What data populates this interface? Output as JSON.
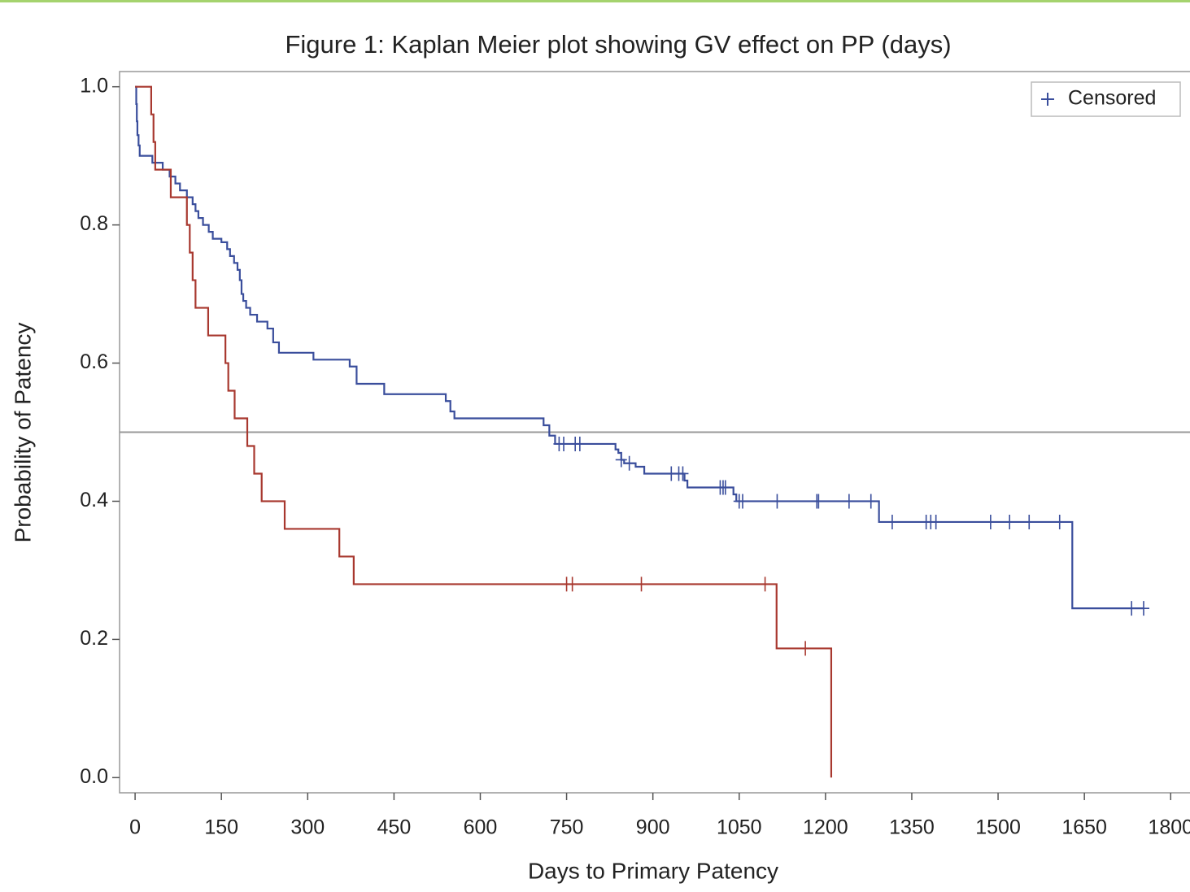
{
  "chart_data": {
    "type": "step",
    "title": "Figure 1: Kaplan Meier plot showing GV effect on PP (days)",
    "x_label": "Days to Primary Patency",
    "y_label": "Probability of Patency",
    "xlim": [
      -27,
      1835
    ],
    "ylim": [
      -0.022,
      1.022
    ],
    "xticks": [
      0,
      150,
      300,
      450,
      600,
      750,
      900,
      1050,
      1200,
      1350,
      1500,
      1650,
      1800
    ],
    "yticks": [
      {
        "value": 0,
        "label": "0.0"
      },
      0.2,
      0.4,
      0.6,
      0.8,
      {
        "value": 1,
        "label": "1.0"
      }
    ],
    "reference_line": 0.5,
    "legend_position": "upper right",
    "censored_label": "Censored",
    "censored_color": "#3a4e9c",
    "series": [
      {
        "color": "#3a4e9c",
        "x": [
          0,
          2,
          3,
          4,
          6,
          8,
          30,
          48,
          60,
          70,
          78,
          90,
          100,
          105,
          110,
          118,
          128,
          135,
          150,
          160,
          165,
          172,
          178,
          182,
          185,
          188,
          193,
          200,
          212,
          230,
          240,
          250,
          310,
          373,
          385,
          433,
          540,
          548,
          555,
          710,
          720,
          730,
          835,
          840,
          845,
          850,
          870,
          885,
          955,
          960,
          1040,
          1045,
          1293,
          1629,
          1753
        ],
        "values": [
          1.0,
          0.975,
          0.95,
          0.93,
          0.915,
          0.9,
          0.89,
          0.88,
          0.87,
          0.86,
          0.85,
          0.84,
          0.83,
          0.82,
          0.81,
          0.8,
          0.79,
          0.78,
          0.775,
          0.765,
          0.755,
          0.745,
          0.735,
          0.72,
          0.7,
          0.69,
          0.68,
          0.67,
          0.66,
          0.65,
          0.63,
          0.615,
          0.605,
          0.595,
          0.57,
          0.555,
          0.545,
          0.53,
          0.52,
          0.51,
          0.495,
          0.483,
          0.475,
          0.47,
          0.46,
          0.455,
          0.45,
          0.44,
          0.43,
          0.42,
          0.41,
          0.4,
          0.37,
          0.245,
          0.245
        ],
        "censored_x": [
          737,
          745,
          765,
          773,
          845,
          859,
          932,
          945,
          952,
          1017,
          1022,
          1026,
          1050,
          1056,
          1116,
          1185,
          1188,
          1241,
          1279,
          1316,
          1375,
          1383,
          1392,
          1487,
          1520,
          1554,
          1607,
          1732,
          1753
        ],
        "censored_values": [
          0.483,
          0.483,
          0.483,
          0.483,
          0.46,
          0.455,
          0.44,
          0.44,
          0.44,
          0.42,
          0.42,
          0.42,
          0.4,
          0.4,
          0.4,
          0.4,
          0.4,
          0.4,
          0.4,
          0.37,
          0.37,
          0.37,
          0.37,
          0.37,
          0.37,
          0.37,
          0.37,
          0.245,
          0.245
        ]
      },
      {
        "color": "#a8382f",
        "x": [
          0,
          28,
          32,
          35,
          62,
          90,
          95,
          100,
          105,
          127,
          157,
          162,
          173,
          195,
          207,
          220,
          260,
          355,
          380,
          1115,
          1210
        ],
        "values": [
          1.0,
          0.96,
          0.92,
          0.88,
          0.84,
          0.8,
          0.76,
          0.72,
          0.68,
          0.64,
          0.6,
          0.56,
          0.52,
          0.48,
          0.44,
          0.4,
          0.36,
          0.32,
          0.28,
          0.187,
          0.0
        ],
        "censored_x": [
          750,
          760,
          880,
          1095,
          1165
        ],
        "censored_values": [
          0.28,
          0.28,
          0.28,
          0.28,
          0.187
        ]
      }
    ]
  }
}
